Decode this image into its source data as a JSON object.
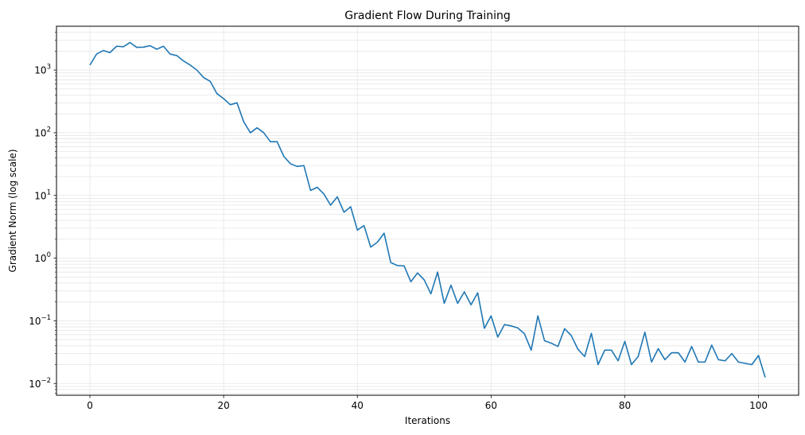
{
  "chart_data": {
    "type": "line",
    "title": "Gradient Flow During Training",
    "xlabel": "Iterations",
    "ylabel": "Gradient Norm (log scale)",
    "xlim": [
      -5,
      106
    ],
    "ylim": [
      0.0065,
      5000
    ],
    "yscale": "log",
    "grid": true,
    "x_ticks": [
      0,
      20,
      40,
      60,
      80,
      100
    ],
    "y_ticks": [
      {
        "value": 0.01,
        "base": "10",
        "exp": "−2"
      },
      {
        "value": 0.1,
        "base": "10",
        "exp": "−1"
      },
      {
        "value": 1,
        "base": "10",
        "exp": "0"
      },
      {
        "value": 10,
        "base": "10",
        "exp": "1"
      },
      {
        "value": 100,
        "base": "10",
        "exp": "2"
      },
      {
        "value": 1000,
        "base": "10",
        "exp": "3"
      }
    ],
    "line_color": "#1f77b4",
    "grid_color": "#e6e6e6",
    "series": [
      {
        "x": [
          0,
          1,
          2,
          3,
          4,
          5,
          6,
          7,
          8,
          9,
          10,
          11,
          12,
          13,
          14,
          15,
          16,
          17,
          18,
          19,
          20,
          21,
          22,
          23,
          24,
          25,
          26,
          27,
          28,
          29,
          30,
          31,
          32,
          33,
          34,
          35,
          36,
          37,
          38,
          39,
          40,
          41,
          42,
          43,
          44,
          45,
          46,
          47,
          48,
          49,
          50,
          51,
          52,
          53,
          54,
          55,
          56,
          57,
          58,
          59,
          60,
          61,
          62,
          63,
          64,
          65,
          66,
          67,
          68,
          69,
          70,
          71,
          72,
          73,
          74,
          75,
          76,
          77,
          78,
          79,
          80,
          81,
          82,
          83,
          84,
          85,
          86,
          87,
          88,
          89,
          90,
          91,
          92,
          93,
          94,
          95,
          96,
          97,
          98,
          99,
          100,
          101
        ],
        "values": [
          1200,
          1800,
          2050,
          1900,
          2400,
          2350,
          2750,
          2300,
          2320,
          2450,
          2150,
          2400,
          1800,
          1700,
          1400,
          1200,
          1000,
          760,
          660,
          420,
          350,
          280,
          300,
          150,
          100,
          120,
          100,
          72,
          72,
          42,
          32,
          29,
          30,
          12,
          13.5,
          10.5,
          7,
          9.5,
          5.4,
          6.6,
          2.8,
          3.3,
          1.5,
          1.8,
          2.5,
          0.85,
          0.76,
          0.75,
          0.42,
          0.58,
          0.45,
          0.27,
          0.6,
          0.19,
          0.37,
          0.19,
          0.29,
          0.18,
          0.28,
          0.076,
          0.12,
          0.055,
          0.087,
          0.083,
          0.077,
          0.062,
          0.034,
          0.12,
          0.048,
          0.044,
          0.039,
          0.075,
          0.058,
          0.035,
          0.027,
          0.063,
          0.02,
          0.034,
          0.034,
          0.023,
          0.047,
          0.02,
          0.027,
          0.066,
          0.022,
          0.036,
          0.024,
          0.031,
          0.031,
          0.022,
          0.039,
          0.022,
          0.022,
          0.041,
          0.024,
          0.023,
          0.03,
          0.022,
          0.021,
          0.02,
          0.028,
          0.0125
        ]
      }
    ]
  }
}
